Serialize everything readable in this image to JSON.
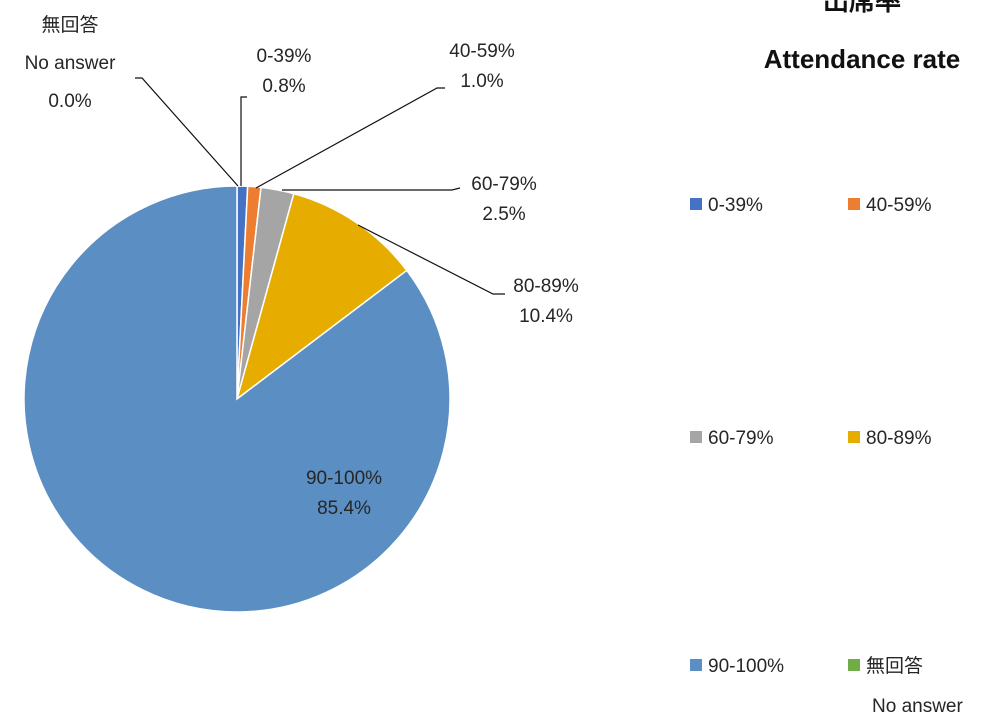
{
  "chart_data": {
    "type": "pie",
    "title": "出席率",
    "subtitle": "Attendance rate",
    "categories": [
      "0-39%",
      "40-59%",
      "60-79%",
      "80-89%",
      "90-100%",
      "無回答"
    ],
    "category_subtitles": [
      "",
      "",
      "",
      "",
      "",
      "No answer"
    ],
    "values": [
      0.8,
      1.0,
      2.5,
      10.4,
      85.4,
      0.0
    ],
    "value_labels": [
      "0.8%",
      "1.0%",
      "2.5%",
      "10.4%",
      "85.4%",
      "0.0%"
    ],
    "colors": [
      "#4472C4",
      "#ED7D31",
      "#A5A5A5",
      "#E6AC00",
      "#5B8EC2",
      "#70AD47"
    ],
    "legend": "right"
  }
}
